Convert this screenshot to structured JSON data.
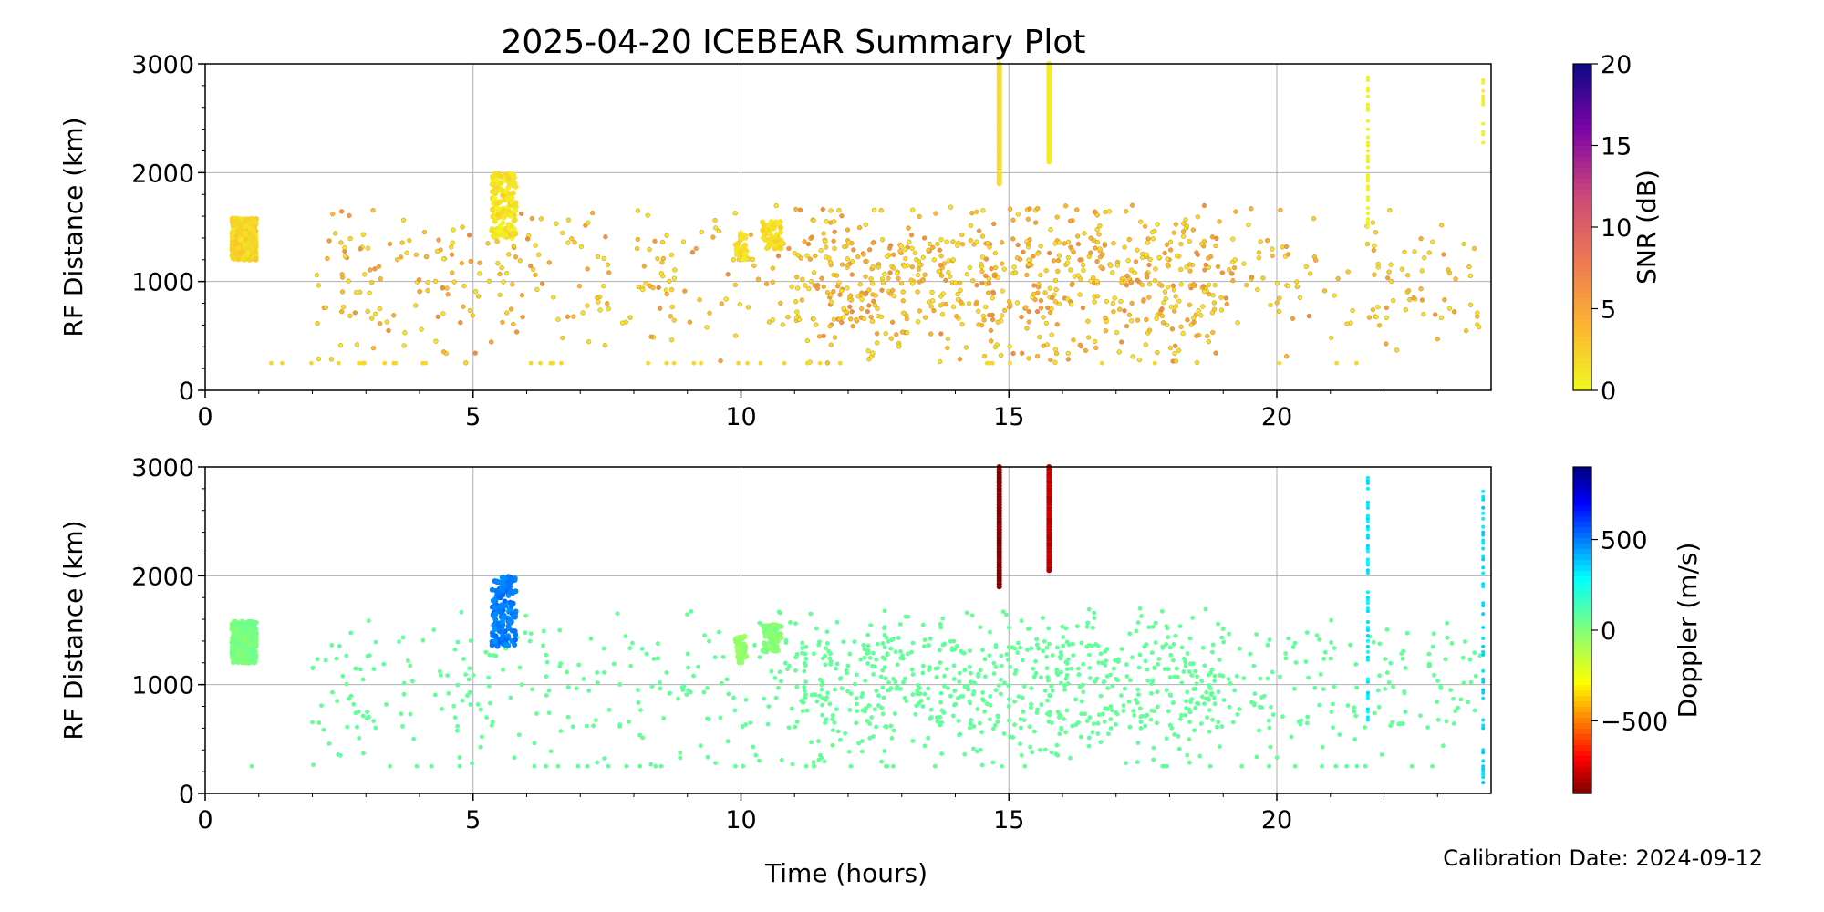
{
  "figure": {
    "title": "2025-04-20 ICEBEAR Summary Plot",
    "xlabel": "Time (hours)",
    "calibration": "Calibration Date: 2024-09-12"
  },
  "chart_data": [
    {
      "type": "scatter",
      "panel": "top",
      "ylabel": "RF Distance (km)",
      "xlim": [
        0,
        24
      ],
      "ylim": [
        0,
        3000
      ],
      "xticks": [
        0,
        5,
        10,
        15,
        20
      ],
      "yticks": [
        0,
        1000,
        2000,
        3000
      ],
      "grid": true,
      "colorbar": {
        "label": "SNR (dB)",
        "range": [
          0,
          20
        ],
        "ticks": [
          0,
          5,
          10,
          15,
          20
        ],
        "colormap": "plasma_r"
      },
      "clusters": [
        {
          "x": [
            0.5,
            0.95
          ],
          "y": [
            1200,
            1580
          ],
          "value": 2,
          "count": 520
        },
        {
          "x": [
            5.35,
            5.8
          ],
          "y": [
            1400,
            2000
          ],
          "value": 1.2,
          "count": 160
        },
        {
          "x": [
            9.9,
            10.1
          ],
          "y": [
            1200,
            1450
          ],
          "value": 1.5,
          "count": 40
        },
        {
          "x": [
            10.4,
            10.75
          ],
          "y": [
            1300,
            1550
          ],
          "value": 1.5,
          "count": 60
        }
      ],
      "streaks": [
        {
          "x": 14.82,
          "y": [
            1900,
            3000
          ],
          "value": 1.5
        },
        {
          "x": 15.75,
          "y": [
            2100,
            3000
          ],
          "value": 0.8
        },
        {
          "x": 21.7,
          "y": [
            1500,
            2900
          ],
          "value": 0.5
        },
        {
          "x": 23.85,
          "y": [
            2250,
            2850
          ],
          "value": 0.5
        }
      ],
      "scatter_field": {
        "x": [
          2,
          23.8
        ],
        "y": [
          250,
          1700
        ],
        "count": 1100,
        "value_range": [
          1,
          7
        ]
      }
    },
    {
      "type": "scatter",
      "panel": "bottom",
      "ylabel": "RF Distance (km)",
      "xlim": [
        0,
        24
      ],
      "ylim": [
        0,
        3000
      ],
      "xticks": [
        0,
        5,
        10,
        15,
        20
      ],
      "yticks": [
        0,
        1000,
        2000,
        3000
      ],
      "grid": true,
      "colorbar": {
        "label": "Doppler (m/s)",
        "range": [
          -900,
          900
        ],
        "ticks": [
          -500,
          0,
          500
        ],
        "colormap": "jet_r"
      },
      "clusters": [
        {
          "x": [
            0.5,
            0.95
          ],
          "y": [
            1200,
            1580
          ],
          "value": 20,
          "count": 520
        },
        {
          "x": [
            5.35,
            5.8
          ],
          "y": [
            1350,
            2000
          ],
          "value": 500,
          "count": 160
        },
        {
          "x": [
            9.9,
            10.1
          ],
          "y": [
            1200,
            1450
          ],
          "value": -40,
          "count": 40
        },
        {
          "x": [
            10.4,
            10.75
          ],
          "y": [
            1300,
            1550
          ],
          "value": -10,
          "count": 60
        }
      ],
      "streaks": [
        {
          "x": 14.82,
          "y": [
            1900,
            3000
          ],
          "value": -880
        },
        {
          "x": 15.75,
          "y": [
            2050,
            3000
          ],
          "value": -800
        },
        {
          "x": 21.7,
          "y": [
            600,
            2900
          ],
          "value": 320
        },
        {
          "x": 23.85,
          "y": [
            100,
            2850
          ],
          "value": 350
        }
      ],
      "scatter_field": {
        "x": [
          2,
          23.8
        ],
        "y": [
          250,
          1700
        ],
        "count": 1100,
        "value_range": [
          60,
          80
        ]
      }
    }
  ]
}
